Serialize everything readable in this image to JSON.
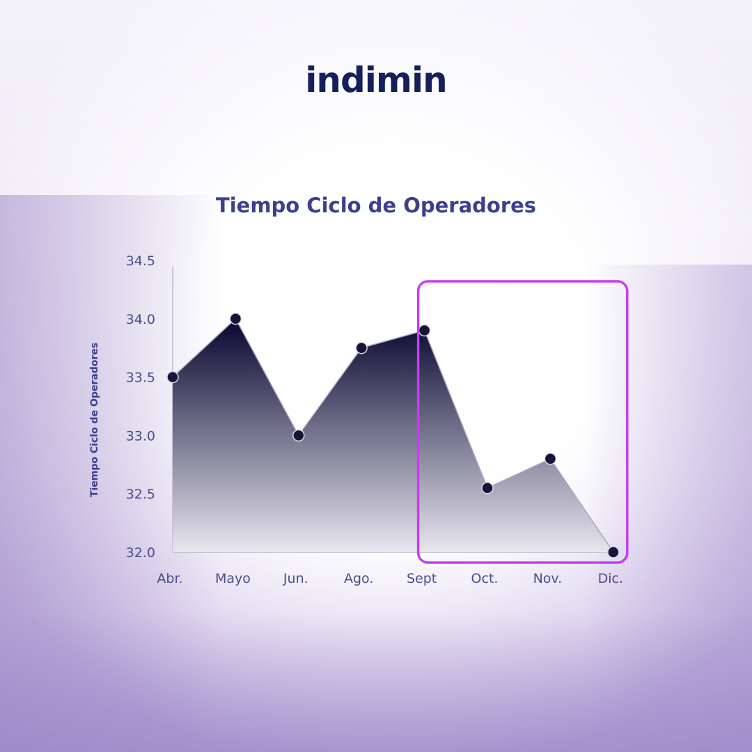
{
  "brand": {
    "logo_text": "indimin"
  },
  "colors": {
    "area_top": "#07042e",
    "area_bottom": "#e8e7ef",
    "point": "#181438",
    "highlight": "#c43ef0",
    "axis_text": "#4a4d8a",
    "title": "#3b3f8f"
  },
  "chart_data": {
    "type": "area",
    "title": "Tiempo Ciclo de Operadores",
    "xlabel": "",
    "ylabel": "Tiempo Ciclo de Operadores",
    "categories": [
      "Abr.",
      "Mayo",
      "Jun.",
      "Ago.",
      "Sept",
      "Oct.",
      "Nov.",
      "Dic."
    ],
    "series": [
      {
        "values": [
          33.5,
          34.0,
          33.0,
          33.75,
          33.9,
          32.55,
          32.8,
          32.0
        ]
      }
    ],
    "ylim": [
      32.0,
      34.5
    ],
    "yticks": [
      "34.5",
      "34.0",
      "33.5",
      "33.0",
      "32.5",
      "32.0"
    ],
    "grid": false,
    "highlight_range": [
      "Sept",
      "Dic."
    ]
  }
}
